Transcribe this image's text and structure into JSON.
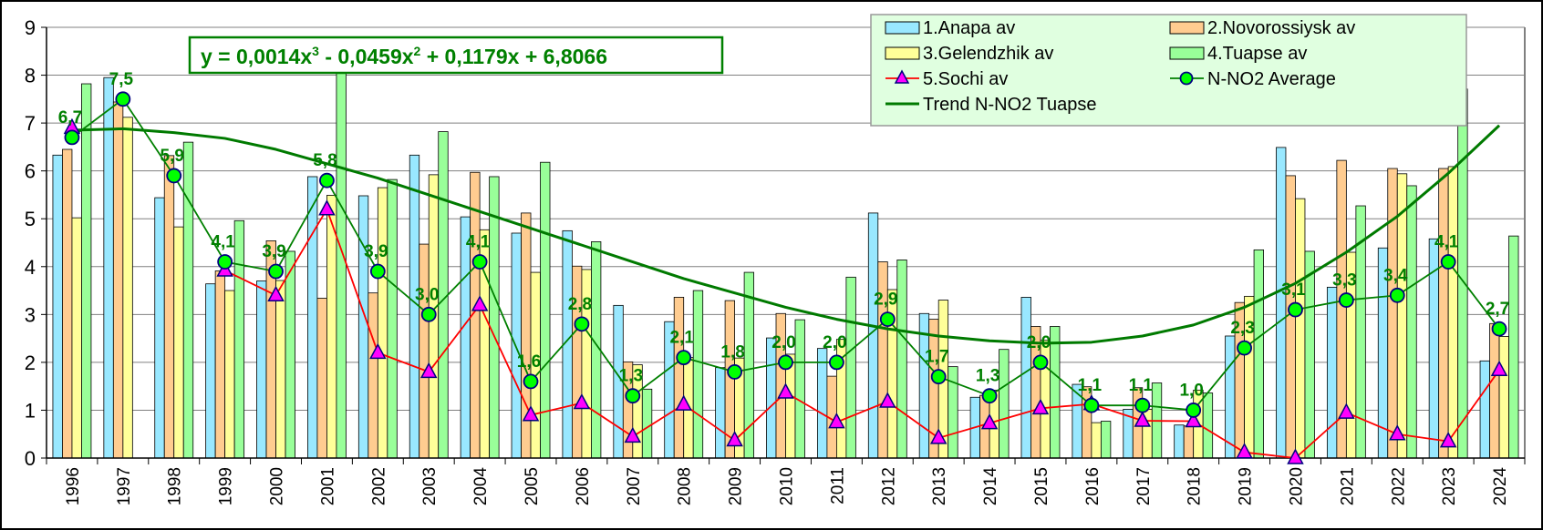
{
  "chart_data": {
    "type": "bar",
    "title": "",
    "xlabel": "",
    "ylabel": "",
    "ylim": [
      0,
      9
    ],
    "yticks": [
      "0",
      "1",
      "2",
      "3",
      "4",
      "5",
      "6",
      "7",
      "8",
      "9"
    ],
    "grid": true,
    "legend_position": "top-right",
    "categories": [
      "1996",
      "1997",
      "1998",
      "1999",
      "2000",
      "2001",
      "2002",
      "2003",
      "2004",
      "2005",
      "2006",
      "2007",
      "2008",
      "2009",
      "2010",
      "2011",
      "2012",
      "2013",
      "2014",
      "2015",
      "2016",
      "2017",
      "2018",
      "2019",
      "2020",
      "2021",
      "2022",
      "2023",
      "2024"
    ],
    "series": [
      {
        "name": "1.Anapa av",
        "type": "bar",
        "color": "#99E8FF",
        "values": [
          6.33,
          7.95,
          5.44,
          3.64,
          3.7,
          5.88,
          5.48,
          6.33,
          5.04,
          4.7,
          4.75,
          3.19,
          2.85,
          1.89,
          2.51,
          2.29,
          5.12,
          3.02,
          1.27,
          3.36,
          1.54,
          1.02,
          0.69,
          2.55,
          6.49,
          3.57,
          4.39,
          4.58,
          2.03
        ]
      },
      {
        "name": "2.Novorossiysk av",
        "type": "bar",
        "color": "#FFCC90",
        "values": [
          6.45,
          7.44,
          6.32,
          3.91,
          4.54,
          3.34,
          3.45,
          4.47,
          5.97,
          5.12,
          4.01,
          2.01,
          3.36,
          3.29,
          3.02,
          1.71,
          4.1,
          2.9,
          1.31,
          2.75,
          1.49,
          1.47,
          0.67,
          3.25,
          5.9,
          6.22,
          6.05,
          6.05,
          2.81
        ]
      },
      {
        "name": "3.Gelendzhik av",
        "type": "bar",
        "color": "#FFFF99",
        "values": [
          5.02,
          7.12,
          4.83,
          3.5,
          3.71,
          5.49,
          5.65,
          5.92,
          4.77,
          3.88,
          3.94,
          1.95,
          2.1,
          2.09,
          2.17,
          2.48,
          3.52,
          3.3,
          1.42,
          2.46,
          0.74,
          1.02,
          1.42,
          3.38,
          5.42,
          4.3,
          5.94,
          6.09,
          2.54
        ]
      },
      {
        "name": "4.Tuapse av",
        "type": "bar",
        "color": "#99FF99",
        "values": [
          7.82,
          null,
          6.6,
          4.96,
          4.32,
          8.07,
          5.82,
          6.82,
          5.88,
          6.18,
          4.52,
          1.44,
          3.5,
          3.88,
          2.89,
          3.78,
          4.14,
          1.91,
          2.27,
          2.75,
          0.77,
          1.57,
          1.36,
          4.35,
          4.32,
          5.27,
          5.69,
          7.71,
          4.64
        ]
      },
      {
        "name": "5.Sochi av",
        "type": "line",
        "color": "#FF0000",
        "marker": "triangle",
        "marker_color": "#FF00FF",
        "values": [
          6.9,
          null,
          null,
          3.92,
          3.4,
          5.2,
          2.2,
          1.8,
          3.2,
          0.9,
          1.15,
          0.45,
          1.12,
          0.37,
          1.37,
          0.75,
          1.18,
          0.42,
          0.73,
          1.04,
          1.13,
          0.78,
          0.77,
          0.12,
          0.0,
          0.95,
          0.5,
          0.35,
          1.84
        ]
      },
      {
        "name": "N-NO2 Average",
        "type": "line",
        "color": "#008000",
        "marker": "circle",
        "marker_color": "#00FF00",
        "values": [
          6.7,
          7.5,
          5.9,
          4.1,
          3.9,
          5.8,
          3.9,
          3.0,
          4.1,
          1.6,
          2.8,
          1.3,
          2.1,
          1.8,
          2.0,
          2.0,
          2.9,
          1.7,
          1.3,
          2.0,
          1.1,
          1.1,
          1.0,
          2.3,
          3.1,
          3.3,
          3.4,
          4.1,
          2.7
        ],
        "data_labels": [
          "6,7",
          "7,5",
          "5,9",
          "4,1",
          "3,9",
          "5,8",
          "3,9",
          "3,0",
          "4,1",
          "1,6",
          "2,8",
          "1,3",
          "2,1",
          "1,8",
          "2,0",
          "2,0",
          "2,9",
          "1,7",
          "1,3",
          "2,0",
          "1,1",
          "1,1",
          "1,0",
          "2,3",
          "3,1",
          "3,3",
          "3,4",
          "4,1",
          "2,7"
        ]
      },
      {
        "name": "Trend N-NO2 Tuapse",
        "type": "line",
        "color": "#007A00",
        "values": [
          6.85,
          6.88,
          6.8,
          6.68,
          6.45,
          6.15,
          5.85,
          5.5,
          5.15,
          4.8,
          4.45,
          4.1,
          3.75,
          3.45,
          3.15,
          2.9,
          2.7,
          2.55,
          2.45,
          2.4,
          2.42,
          2.55,
          2.78,
          3.15,
          3.65,
          4.3,
          5.05,
          5.95,
          6.95
        ]
      }
    ],
    "legend_order": [
      "1.Anapa av",
      "2.Novorossiysk av",
      "3.Gelendzhik av",
      "4.Tuapse av",
      "5.Sochi av",
      "N-NO2 Average",
      "Trend N-NO2 Tuapse"
    ],
    "annotation": {
      "equation_parts": [
        "y = 0,0014x",
        "3",
        " - 0,0459x",
        "2",
        " + 0,1179x + 6,8066"
      ],
      "color": "#008000"
    }
  }
}
